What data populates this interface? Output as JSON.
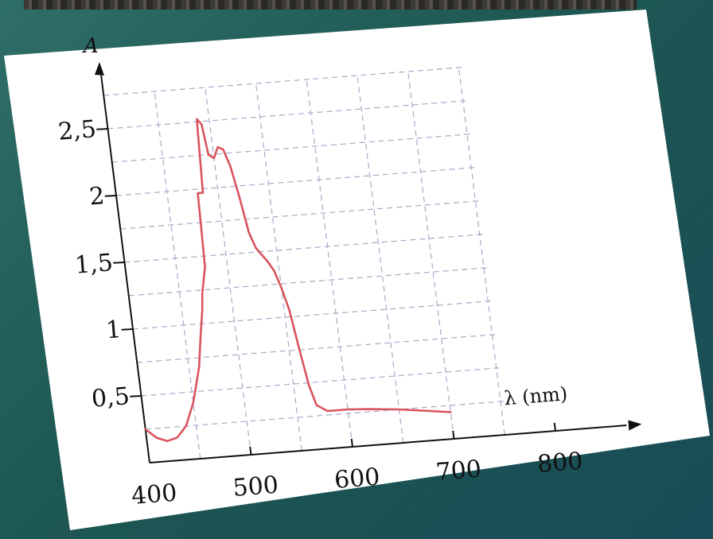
{
  "chart_data": {
    "type": "line",
    "xlabel": "λ (nm)",
    "ylabel": "A",
    "xlim": [
      400,
      800
    ],
    "ylim": [
      0,
      2.5
    ],
    "x_ticks": [
      "400",
      "500",
      "600",
      "700",
      "800"
    ],
    "y_ticks": [
      "0,5",
      "1",
      "1,5",
      "2",
      "2,5"
    ],
    "grid": true,
    "series": [
      {
        "color": "#d9545f",
        "x": [
          400,
          410,
          420,
          430,
          440,
          450,
          460,
          465,
          470,
          472,
          475,
          478,
          480,
          482,
          485,
          488,
          492,
          495,
          500,
          505,
          510,
          515,
          520,
          525,
          530,
          540,
          545,
          550,
          555,
          560,
          565,
          570,
          580,
          590,
          600,
          620,
          650,
          680,
          700
        ],
        "y": [
          0.25,
          0.18,
          0.15,
          0.17,
          0.25,
          0.42,
          0.68,
          0.9,
          1.1,
          1.22,
          1.32,
          1.42,
          1.97,
          1.97,
          1.97,
          2.52,
          2.48,
          2.25,
          2.22,
          2.3,
          2.28,
          2.15,
          1.92,
          1.65,
          1.53,
          1.42,
          1.35,
          1.22,
          1.05,
          0.75,
          0.48,
          0.33,
          0.28,
          0.28,
          0.28,
          0.27,
          0.25,
          0.22,
          0.2
        ]
      }
    ]
  }
}
